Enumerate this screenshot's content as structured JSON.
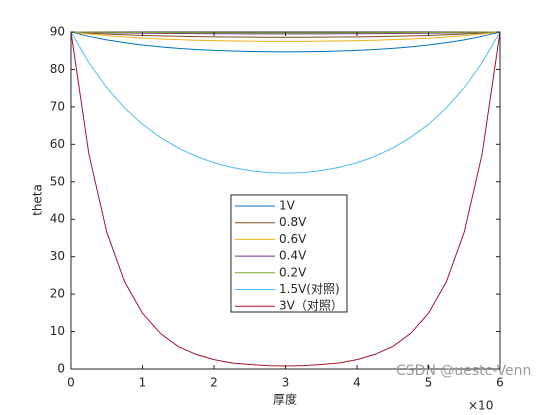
{
  "chart_data": {
    "type": "line",
    "x_label": "厚度",
    "y_label": "theta",
    "x_multiplier": "×10",
    "watermark": "CSDN @uestc-Venn",
    "x": [
      0,
      0.25,
      0.5,
      0.75,
      1,
      1.25,
      1.5,
      1.75,
      2,
      2.25,
      2.5,
      2.75,
      3,
      3.25,
      3.5,
      3.75,
      4,
      4.25,
      4.5,
      4.75,
      5,
      5.25,
      5.5,
      5.75,
      6
    ],
    "series": [
      {
        "name": "1V",
        "color": "#0072bd",
        "values": [
          90,
          88.85,
          87.91,
          87.15,
          86.53,
          86.04,
          85.64,
          85.33,
          85.09,
          84.92,
          84.8,
          84.72,
          84.7,
          84.72,
          84.8,
          84.92,
          85.09,
          85.33,
          85.64,
          86.04,
          86.53,
          87.15,
          87.91,
          88.85,
          90
        ]
      },
      {
        "name": "0.8V",
        "color": "#7f4f1f",
        "values": [
          90,
          89.7,
          89.45,
          89.25,
          89.08,
          88.95,
          88.85,
          88.77,
          88.7,
          88.66,
          88.63,
          88.61,
          88.6,
          88.61,
          88.63,
          88.66,
          88.7,
          88.77,
          88.85,
          88.95,
          89.08,
          89.25,
          89.45,
          89.7,
          90
        ]
      },
      {
        "name": "0.6V",
        "color": "#edb120",
        "values": [
          90,
          89.46,
          89.02,
          88.66,
          88.37,
          88.13,
          87.95,
          87.8,
          87.69,
          87.6,
          87.55,
          87.51,
          87.5,
          87.51,
          87.55,
          87.6,
          87.69,
          87.8,
          87.95,
          88.13,
          88.37,
          88.66,
          89.02,
          89.46,
          90
        ]
      },
      {
        "name": "0.4V",
        "color": "#7e2f8e",
        "values": [
          90,
          89.89,
          89.8,
          89.73,
          89.67,
          89.63,
          89.59,
          89.56,
          89.54,
          89.52,
          89.51,
          89.5,
          89.5,
          89.5,
          89.51,
          89.52,
          89.54,
          89.56,
          89.59,
          89.63,
          89.67,
          89.73,
          89.8,
          89.89,
          90
        ]
      },
      {
        "name": "0.2V",
        "color": "#77ac30",
        "values": [
          90,
          89.96,
          89.92,
          89.89,
          89.87,
          89.85,
          89.84,
          89.82,
          89.81,
          89.81,
          89.8,
          89.8,
          89.8,
          89.8,
          89.8,
          89.81,
          89.81,
          89.82,
          89.84,
          89.85,
          89.87,
          89.89,
          89.92,
          89.96,
          90
        ]
      },
      {
        "name": "1.5V(对照)",
        "color": "#4dbeee",
        "values": [
          90,
          81.82,
          75.15,
          69.72,
          65.34,
          61.84,
          59.01,
          56.79,
          55.09,
          53.85,
          52.98,
          52.45,
          52.3,
          52.45,
          52.98,
          53.85,
          55.09,
          56.79,
          59.01,
          61.84,
          65.34,
          69.72,
          75.15,
          81.82,
          90
        ]
      },
      {
        "name": "3V（对照）",
        "color": "#a2142f",
        "values": [
          90,
          57.4,
          36.6,
          23.3,
          14.9,
          9.5,
          6,
          3.9,
          2.5,
          1.6,
          1.2,
          0.9,
          0.8,
          0.9,
          1.2,
          1.6,
          2.5,
          3.9,
          6,
          9.5,
          14.9,
          23.3,
          36.6,
          57.4,
          90
        ]
      }
    ],
    "xlim": [
      0,
      6
    ],
    "xticks": [
      0,
      1,
      2,
      3,
      4,
      5,
      6
    ],
    "ylim": [
      0,
      90
    ],
    "yticks": [
      0,
      10,
      20,
      30,
      40,
      50,
      60,
      70,
      80,
      90
    ]
  }
}
